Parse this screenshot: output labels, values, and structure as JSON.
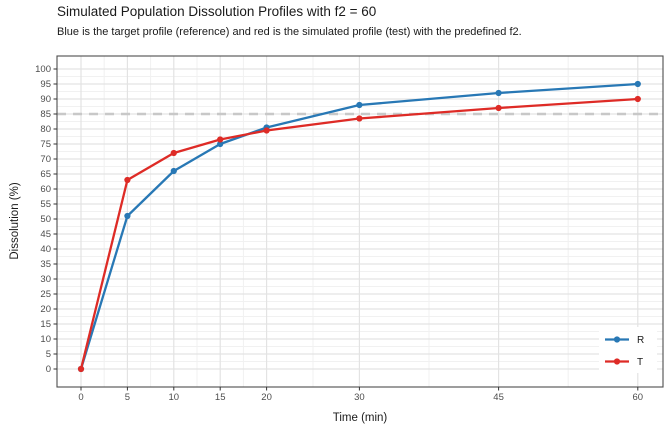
{
  "chart_data": {
    "type": "line",
    "title": "Simulated Population Dissolution Profiles with f2 = 60",
    "subtitle": "Blue is the target profile (reference) and red is the simulated profile (test) with the predefined f2.",
    "xlabel": "Time (min)",
    "ylabel": "Dissolution (%)",
    "x": [
      0,
      5,
      10,
      15,
      20,
      30,
      45,
      60
    ],
    "x_tick_labels": [
      "0",
      "5",
      "10",
      "15",
      "20",
      "30",
      "45",
      "60"
    ],
    "y_ticks": [
      0,
      5,
      10,
      15,
      20,
      25,
      30,
      35,
      40,
      45,
      50,
      55,
      60,
      65,
      70,
      75,
      80,
      85,
      90,
      95,
      100
    ],
    "xlim": [
      -2.6,
      62.5
    ],
    "ylim": [
      -6,
      104.3
    ],
    "grid": "major+minor",
    "reference_line": {
      "y": 85,
      "style": "dashed",
      "color": "#c8c8c8"
    },
    "series": [
      {
        "name": "R",
        "color": "#2878b5",
        "values": [
          0,
          51,
          66,
          75,
          80.5,
          88,
          92,
          95
        ]
      },
      {
        "name": "T",
        "color": "#de2b26",
        "values": [
          0,
          63,
          72,
          76.5,
          79.5,
          83.5,
          87,
          90
        ]
      }
    ],
    "legend": {
      "position": "inside-bottom-right",
      "entries": [
        "R",
        "T"
      ]
    }
  },
  "theme": {
    "panel_border": "#4d4d4d",
    "grid_major": "#e3e3e3",
    "grid_minor": "#f1f1f1",
    "tick_color": "#333333",
    "tick_label_color": "#4d4d4d",
    "text_color": "#1a1a1a",
    "background": "#ffffff"
  }
}
